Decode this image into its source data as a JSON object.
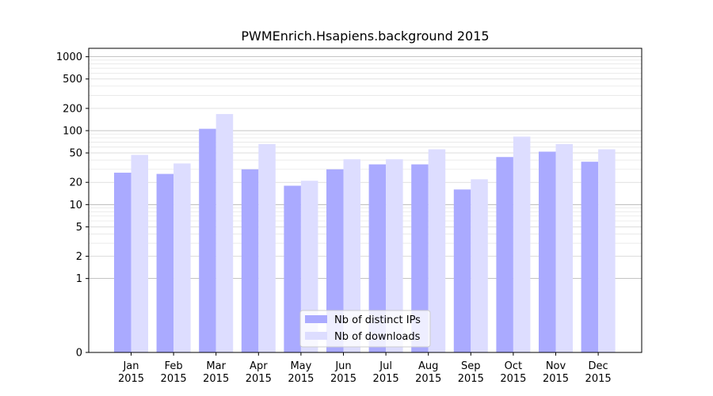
{
  "chart_data": {
    "type": "bar",
    "title": "PWMEnrich.Hsapiens.background 2015",
    "xlabel": "",
    "ylabel": "",
    "y_scale": "symlog",
    "ylim": [
      0,
      1300
    ],
    "y_ticks": [
      0,
      1,
      2,
      5,
      10,
      20,
      50,
      100,
      200,
      500,
      1000
    ],
    "y_tick_labels": [
      "0",
      "1",
      "2",
      "5",
      "10",
      "20",
      "50",
      "100",
      "200",
      "500",
      "1000"
    ],
    "grid": true,
    "legend_position": "bottom-center",
    "categories": [
      [
        "Jan",
        "2015"
      ],
      [
        "Feb",
        "2015"
      ],
      [
        "Mar",
        "2015"
      ],
      [
        "Apr",
        "2015"
      ],
      [
        "May",
        "2015"
      ],
      [
        "Jun",
        "2015"
      ],
      [
        "Jul",
        "2015"
      ],
      [
        "Aug",
        "2015"
      ],
      [
        "Sep",
        "2015"
      ],
      [
        "Oct",
        "2015"
      ],
      [
        "Nov",
        "2015"
      ],
      [
        "Dec",
        "2015"
      ]
    ],
    "series": [
      {
        "name": "Nb of distinct IPs",
        "color": "#aaaaff",
        "values": [
          27,
          26,
          106,
          30,
          18,
          30,
          35,
          35,
          16,
          44,
          52,
          38
        ]
      },
      {
        "name": "Nb of downloads",
        "color": "#ddddff",
        "values": [
          47,
          36,
          168,
          66,
          21,
          41,
          41,
          56,
          22,
          83,
          66,
          56
        ]
      }
    ]
  }
}
